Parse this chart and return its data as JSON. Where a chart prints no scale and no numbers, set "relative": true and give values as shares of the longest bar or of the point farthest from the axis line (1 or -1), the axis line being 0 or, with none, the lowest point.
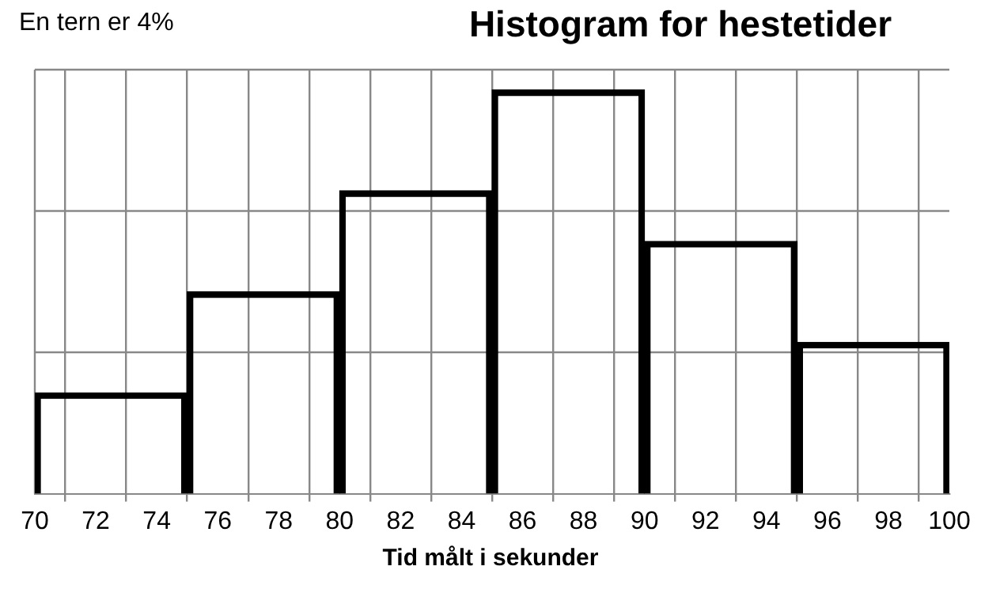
{
  "chart_data": {
    "type": "bar",
    "title": "Histogram for hestetider",
    "xlabel": "Tid målt i sekunder",
    "annotations": [
      "En tern er 4%"
    ],
    "x": [
      72.5,
      77.5,
      82.5,
      87.5,
      92.5,
      97.5
    ],
    "values": [
      0.25,
      0.5,
      0.75,
      1,
      0.625,
      0.375
    ],
    "relative": true,
    "color": "#000000",
    "xlim": [
      70,
      100
    ],
    "xticks": [
      70,
      72,
      74,
      76,
      78,
      80,
      82,
      84,
      86,
      88,
      90,
      92,
      94,
      96,
      98,
      100
    ],
    "grid": true
  }
}
